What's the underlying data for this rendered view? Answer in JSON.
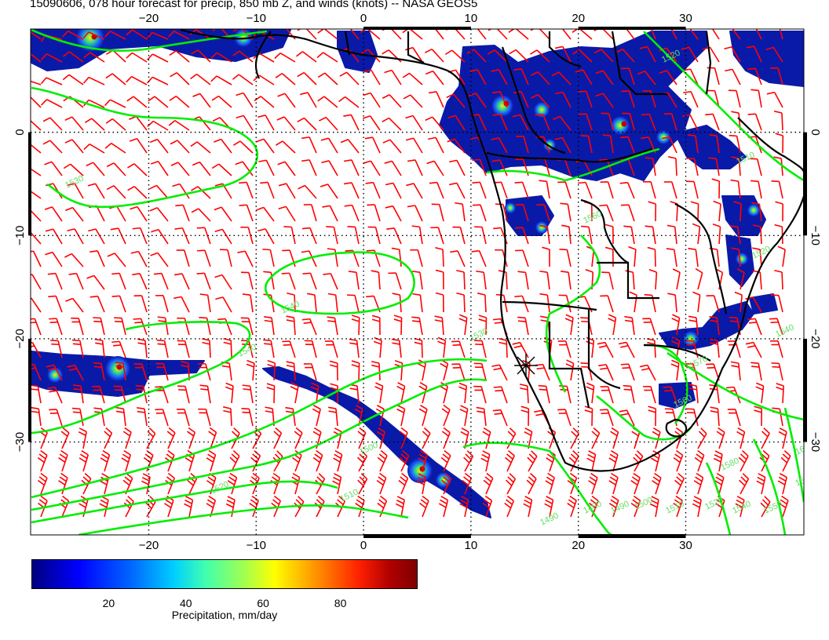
{
  "title": "15090606, 078 hour forecast for precip, 850 mb Z, and winds (knots) -- NASA GEOS5",
  "map": {
    "lon_range": [
      -31,
      41
    ],
    "lat_range": [
      -39,
      10
    ],
    "lon_ticks": [
      -20,
      -10,
      0,
      10,
      20,
      30
    ],
    "lon_tick_labels": [
      "−20",
      "−10",
      "0",
      "10",
      "20",
      "30"
    ],
    "lat_ticks": [
      0,
      -10,
      -20,
      -30
    ],
    "lat_tick_labels": [
      "0",
      "−10",
      "−20",
      "−30"
    ],
    "colors": {
      "wind_barbs": "#ff0000",
      "height_contours": "#00ff00",
      "coastlines": "#000000",
      "precip_low": "#00007f",
      "precip_high": "#7f0000"
    },
    "contour_labels": [
      "1530",
      "1560",
      "1540",
      "1540",
      "1530",
      "1520",
      "1510",
      "1500",
      "1490",
      "1480",
      "1490",
      "1500",
      "1510",
      "1520",
      "1540",
      "1550",
      "1560",
      "1520",
      "1510",
      "1520",
      "1540",
      "1560",
      "1570",
      "1580",
      "1600"
    ]
  },
  "colorbar": {
    "title": "Precipitation, mm/day",
    "range": [
      0,
      100
    ],
    "ticks": [
      20,
      40,
      60,
      80
    ],
    "tick_labels": [
      "20",
      "40",
      "60",
      "80"
    ],
    "colormap": "jet"
  }
}
